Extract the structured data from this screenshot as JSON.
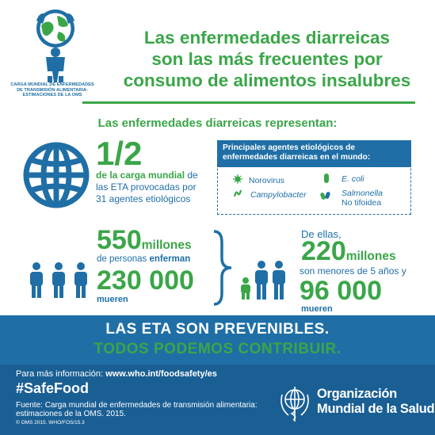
{
  "header": {
    "logo_caption_1": "CARGA MUNDIAL DE ENFERMEDADES",
    "logo_caption_2": "DE TRANSMISIÓN ALIMENTARIA:",
    "logo_caption_3": "ESTIMACIONES  DE LA OMS",
    "headline_1": "Las enfermedades diarreicas",
    "headline_2": "son las más frecuentes por",
    "headline_3": "consumo de alimentos insalubres"
  },
  "subhead": "Las enfermedades diarreicas representan:",
  "burden": {
    "fraction": "1/2",
    "desc_bold": "de la carga mundial",
    "desc_1": " de",
    "desc_2": "las ETA provocadas por",
    "desc_3": "31 agentes etiológicos"
  },
  "agents": {
    "title_1": "Principales agentes etiológicos de",
    "title_2": "enfermedades diarreicas en el mundo:",
    "items": [
      "Norovirus",
      "Campylobacter",
      "E. coli",
      "Salmonella",
      "No tifoidea"
    ]
  },
  "cases": {
    "sick_number": "550",
    "sick_unit": "millones",
    "sick_text_1": "de personas ",
    "sick_text_bold": "enferman",
    "death_number": "230 000",
    "death_text": "mueren"
  },
  "children": {
    "intro": "De ellas,",
    "sick_number": "220",
    "sick_unit": "millones",
    "sick_text": "son menores de 5 años y",
    "death_number": "96 000",
    "death_text": "mueren"
  },
  "banner": {
    "line1": "LAS ETA SON PREVENIBLES.",
    "line2": "TODOS PODEMOS CONTRIBUIR."
  },
  "footer": {
    "more_label": "Para más información: ",
    "more_url": "www.who.int/foodsafety/es",
    "hashtag": "#SafeFood",
    "source_1": "Fuente: Carga mundial de enfermedades de transmisión alimentaria:",
    "source_2": "estimaciones  de la OMS. 2015.",
    "copyright": "© OMS 2015. WHO/FOS/15.3",
    "org_1": "Organización",
    "org_2": "Mundial de la Salud"
  },
  "colors": {
    "green": "#3aa648",
    "blue": "#1f6fa6",
    "footer_blue": "#1a5f94"
  }
}
